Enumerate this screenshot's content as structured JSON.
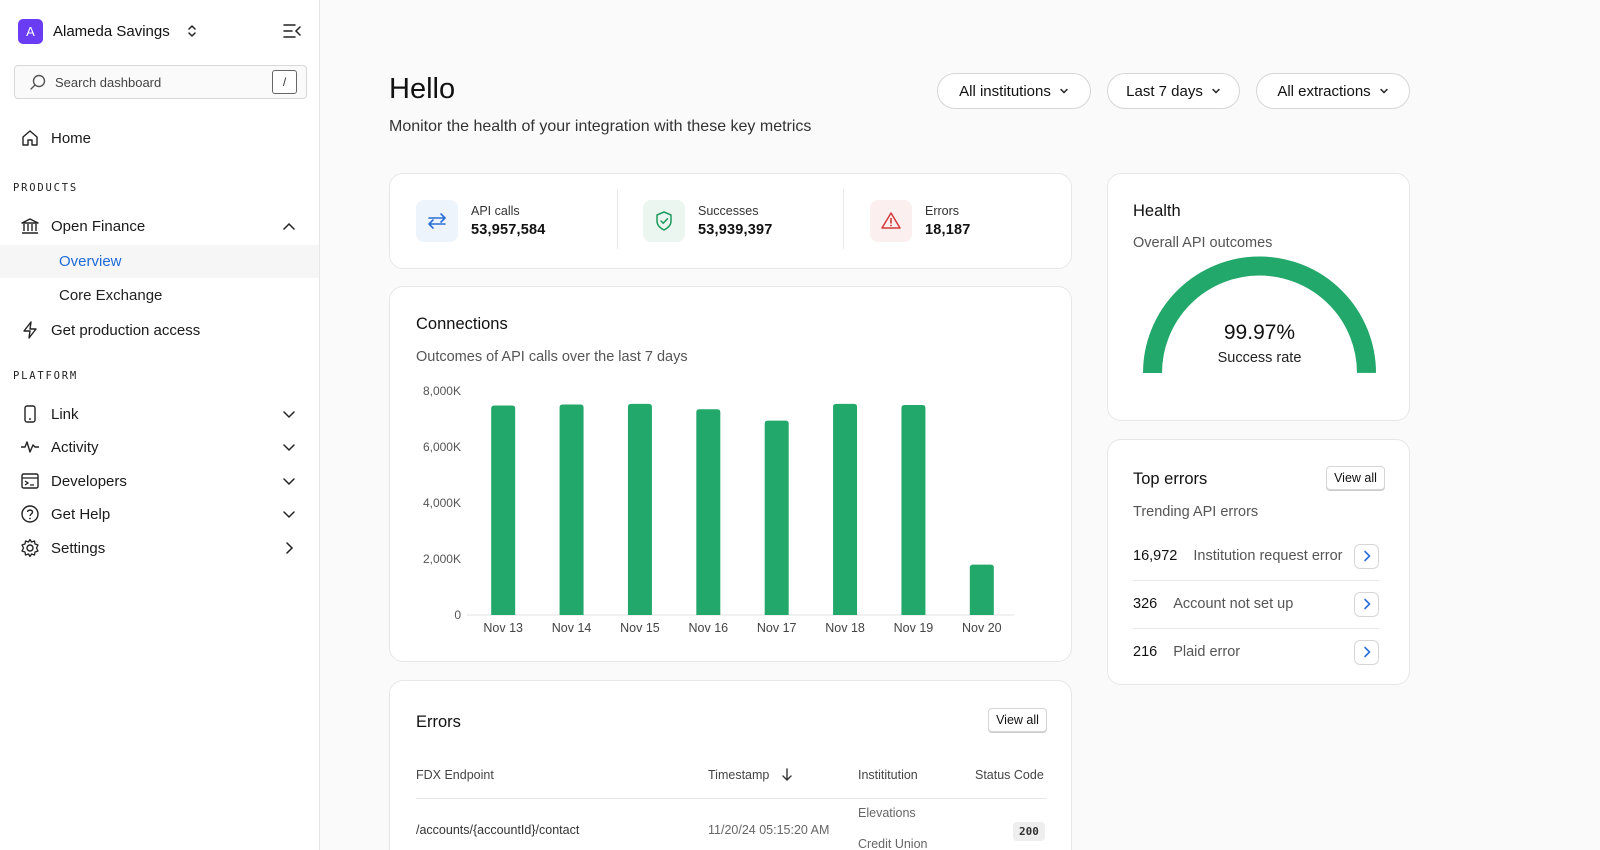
{
  "org": {
    "initial": "A",
    "name": "Alameda Savings"
  },
  "search": {
    "placeholder": "Search dashboard",
    "shortcut": "/"
  },
  "nav": {
    "home": "Home",
    "products_label": "PRODUCTS",
    "open_finance": "Open Finance",
    "overview": "Overview",
    "core_exchange": "Core Exchange",
    "production_access": "Get production access",
    "platform_label": "PLATFORM",
    "link": "Link",
    "activity": "Activity",
    "developers": "Developers",
    "get_help": "Get Help",
    "settings": "Settings"
  },
  "header": {
    "title": "Hello",
    "subtitle": "Monitor the health of your integration with these key metrics"
  },
  "filters": {
    "institutions": "All institutions",
    "range": "Last 7 days",
    "extractions": "All extractions"
  },
  "stats": {
    "api_calls_label": "API calls",
    "api_calls_value": "53,957,584",
    "successes_label": "Successes",
    "successes_value": "53,939,397",
    "errors_label": "Errors",
    "errors_value": "18,187"
  },
  "connections": {
    "title": "Connections",
    "subtitle": "Outcomes of API calls over the last 7 days"
  },
  "chart_data": {
    "type": "bar",
    "categories": [
      "Nov 13",
      "Nov 14",
      "Nov 15",
      "Nov 16",
      "Nov 17",
      "Nov 18",
      "Nov 19",
      "Nov 20"
    ],
    "values": [
      7480,
      7520,
      7540,
      7350,
      6940,
      7540,
      7500,
      1800
    ],
    "yticks": [
      "0",
      "2,000K",
      "4,000K",
      "6,000K",
      "8,000K"
    ],
    "ylim": [
      0,
      8000
    ],
    "color": "#22a86a"
  },
  "health": {
    "title": "Health",
    "subtitle": "Overall API outcomes",
    "percent": "99.97%",
    "percent_value": 99.97,
    "caption": "Success rate",
    "color": "#22a86a"
  },
  "top_errors": {
    "title": "Top errors",
    "subtitle": "Trending API errors",
    "view_all": "View all",
    "items": [
      {
        "count": "16,972",
        "label": "Institution request error"
      },
      {
        "count": "326",
        "label": "Account not set up"
      },
      {
        "count": "216",
        "label": "Plaid error"
      }
    ]
  },
  "errors_table": {
    "title": "Errors",
    "view_all": "View all",
    "headers": {
      "endpoint": "FDX Endpoint",
      "timestamp": "Timestamp",
      "institution": "Instititution",
      "status": "Status Code"
    },
    "rows": [
      {
        "endpoint": "/accounts/{accountId}/contact",
        "timestamp": "11/20/24 05:15:20 AM",
        "institution_line1": "Elevations",
        "institution_line2": "Credit Union",
        "status": "200"
      }
    ]
  }
}
